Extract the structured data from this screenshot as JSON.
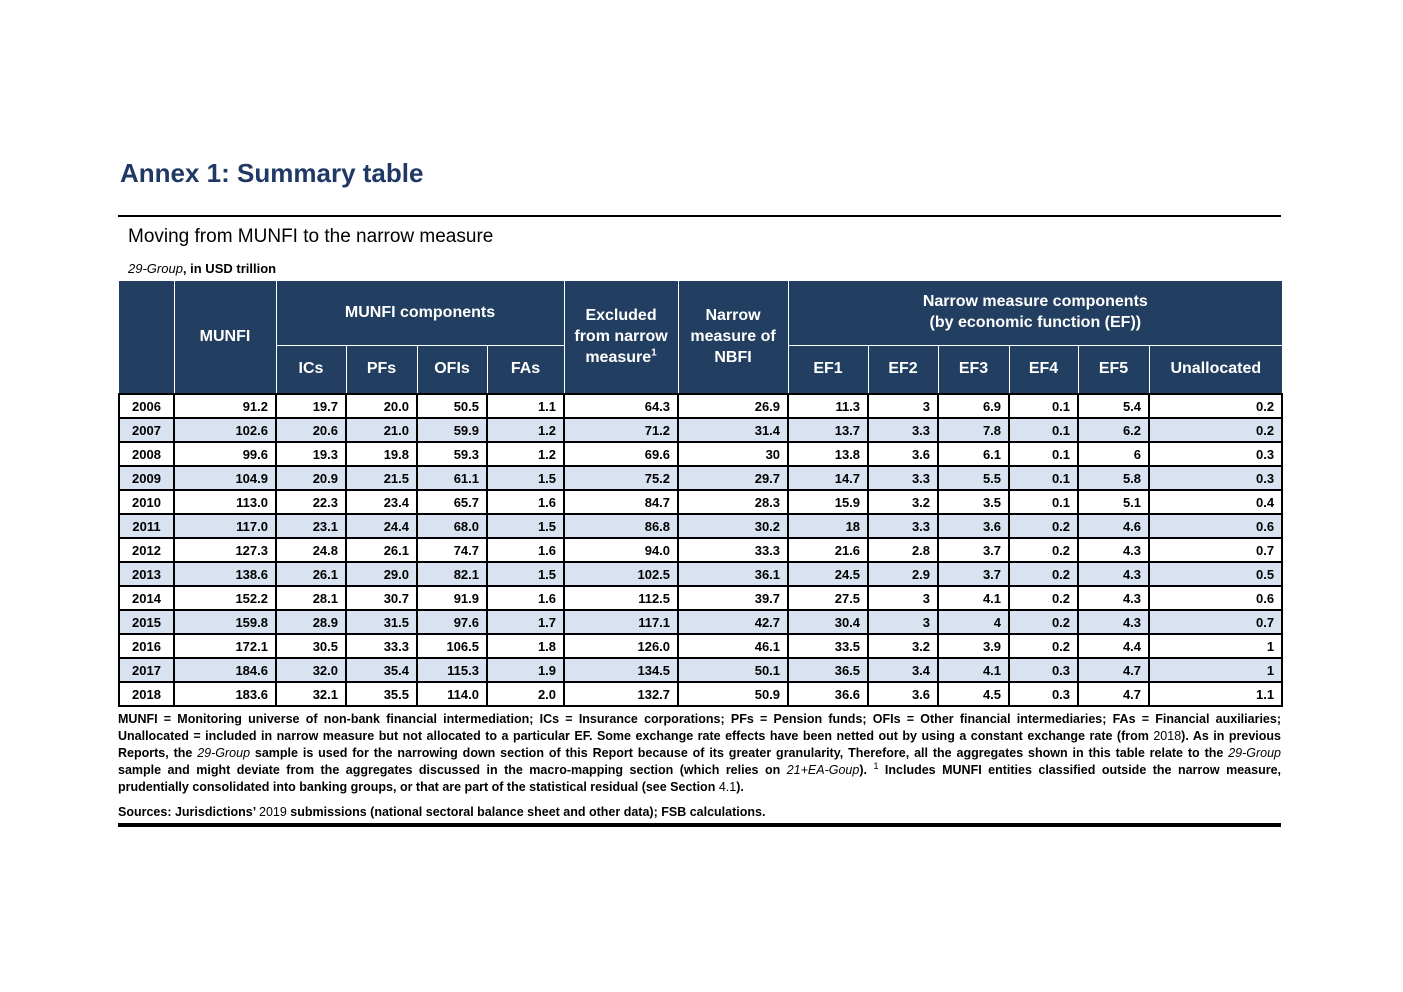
{
  "colors": {
    "title": "#1f3864",
    "header_bg": "#223e60",
    "row_alt_bg": "#d9e2f0"
  },
  "page": {
    "title": "Annex 1: Summary table",
    "subtitle": "Moving from MUNFI to the narrow measure",
    "unit_note_italic": "29-Group",
    "unit_note_rest": ", in USD trillion"
  },
  "table": {
    "header": {
      "year_col": "",
      "munfi": "MUNFI",
      "munfi_components": "MUNFI components",
      "component_cols": [
        "ICs",
        "PFs",
        "OFIs",
        "FAs"
      ],
      "excluded_label": "Excluded from narrow measure",
      "excluded_sup": "1",
      "narrow_nbfi": "Narrow measure of NBFI",
      "narrow_components_line1": "Narrow measure components",
      "narrow_components_line2": "(by economic function (EF))",
      "ef_cols": [
        "EF1",
        "EF2",
        "EF3",
        "EF4",
        "EF5",
        "Unallocated"
      ]
    },
    "columns_order": [
      "Year",
      "MUNFI",
      "ICs",
      "PFs",
      "OFIs",
      "FAs",
      "Excluded from narrow measure",
      "Narrow measure of NBFI",
      "EF1",
      "EF2",
      "EF3",
      "EF4",
      "EF5",
      "Unallocated"
    ],
    "rows": [
      {
        "year": "2006",
        "values": [
          "91.2",
          "19.7",
          "20.0",
          "50.5",
          "1.1",
          "64.3",
          "26.9",
          "11.3",
          "3",
          "6.9",
          "0.1",
          "5.4",
          "0.2"
        ]
      },
      {
        "year": "2007",
        "values": [
          "102.6",
          "20.6",
          "21.0",
          "59.9",
          "1.2",
          "71.2",
          "31.4",
          "13.7",
          "3.3",
          "7.8",
          "0.1",
          "6.2",
          "0.2"
        ]
      },
      {
        "year": "2008",
        "values": [
          "99.6",
          "19.3",
          "19.8",
          "59.3",
          "1.2",
          "69.6",
          "30",
          "13.8",
          "3.6",
          "6.1",
          "0.1",
          "6",
          "0.3"
        ]
      },
      {
        "year": "2009",
        "values": [
          "104.9",
          "20.9",
          "21.5",
          "61.1",
          "1.5",
          "75.2",
          "29.7",
          "14.7",
          "3.3",
          "5.5",
          "0.1",
          "5.8",
          "0.3"
        ]
      },
      {
        "year": "2010",
        "values": [
          "113.0",
          "22.3",
          "23.4",
          "65.7",
          "1.6",
          "84.7",
          "28.3",
          "15.9",
          "3.2",
          "3.5",
          "0.1",
          "5.1",
          "0.4"
        ]
      },
      {
        "year": "2011",
        "values": [
          "117.0",
          "23.1",
          "24.4",
          "68.0",
          "1.5",
          "86.8",
          "30.2",
          "18",
          "3.3",
          "3.6",
          "0.2",
          "4.6",
          "0.6"
        ]
      },
      {
        "year": "2012",
        "values": [
          "127.3",
          "24.8",
          "26.1",
          "74.7",
          "1.6",
          "94.0",
          "33.3",
          "21.6",
          "2.8",
          "3.7",
          "0.2",
          "4.3",
          "0.7"
        ]
      },
      {
        "year": "2013",
        "values": [
          "138.6",
          "26.1",
          "29.0",
          "82.1",
          "1.5",
          "102.5",
          "36.1",
          "24.5",
          "2.9",
          "3.7",
          "0.2",
          "4.3",
          "0.5"
        ]
      },
      {
        "year": "2014",
        "values": [
          "152.2",
          "28.1",
          "30.7",
          "91.9",
          "1.6",
          "112.5",
          "39.7",
          "27.5",
          "3",
          "4.1",
          "0.2",
          "4.3",
          "0.6"
        ]
      },
      {
        "year": "2015",
        "values": [
          "159.8",
          "28.9",
          "31.5",
          "97.6",
          "1.7",
          "117.1",
          "42.7",
          "30.4",
          "3",
          "4",
          "0.2",
          "4.3",
          "0.7"
        ]
      },
      {
        "year": "2016",
        "values": [
          "172.1",
          "30.5",
          "33.3",
          "106.5",
          "1.8",
          "126.0",
          "46.1",
          "33.5",
          "3.2",
          "3.9",
          "0.2",
          "4.4",
          "1"
        ]
      },
      {
        "year": "2017",
        "values": [
          "184.6",
          "32.0",
          "35.4",
          "115.3",
          "1.9",
          "134.5",
          "50.1",
          "36.5",
          "3.4",
          "4.1",
          "0.3",
          "4.7",
          "1"
        ]
      },
      {
        "year": "2018",
        "values": [
          "183.6",
          "32.1",
          "35.5",
          "114.0",
          "2.0",
          "132.7",
          "50.9",
          "36.6",
          "3.6",
          "4.5",
          "0.3",
          "4.7",
          "1.1"
        ]
      }
    ]
  },
  "footnote": {
    "segments": [
      {
        "t": "MUNFI = Monitoring universe of non-bank financial intermediation; ICs = Insurance corporations; PFs = Pension funds; OFIs = Other financial intermediaries; FAs = Financial auxiliaries; Unallocated = included in narrow measure but not allocated to a particular EF. Some exchange rate effects have been netted out by using a constant exchange rate (from "
      },
      {
        "t": "2018",
        "num": true
      },
      {
        "t": "). As in previous Reports, the "
      },
      {
        "t": "29-Group",
        "italic": true
      },
      {
        "t": " sample is used for the narrowing down section of this Report because of its greater granularity, Therefore, all the aggregates shown in this table relate to the "
      },
      {
        "t": "29-Group",
        "italic": true
      },
      {
        "t": " sample and might deviate from the aggregates discussed in the macro-mapping section (which relies on "
      },
      {
        "t": "21+EA-Goup",
        "italic": true
      },
      {
        "t": ").  "
      },
      {
        "t": "1",
        "sup": true
      },
      {
        "t": " Includes MUNFI entities classified outside the narrow measure, prudentially consolidated into banking groups, or that are part of the statistical residual (see Section "
      },
      {
        "t": "4.1",
        "num": true
      },
      {
        "t": ")."
      }
    ]
  },
  "sources": {
    "segments": [
      {
        "t": "Sources: Jurisdictions’ "
      },
      {
        "t": "2019",
        "num": true
      },
      {
        "t": " submissions (national sectoral balance sheet and other data); FSB calculations."
      }
    ]
  }
}
